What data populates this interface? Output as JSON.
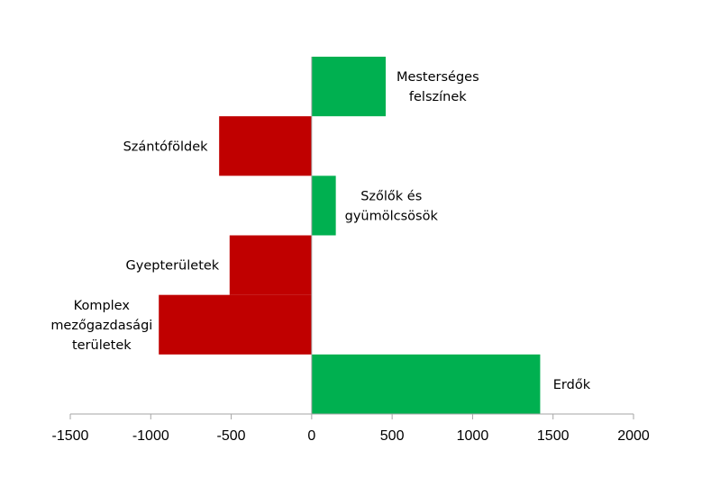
{
  "chart_data": {
    "type": "bar",
    "orientation": "horizontal",
    "categories": [
      "Mesterséges felszínek",
      "Szántóföldek",
      "Szőlők és gyümölcsösök",
      "Gyepterületek",
      "Komplex mezőgazdasági területek",
      "Erdők"
    ],
    "category_lines": [
      [
        "Mesterséges",
        "felszínek"
      ],
      [
        "Szántóföldek"
      ],
      [
        "Szőlők és",
        "gyümölcsösök"
      ],
      [
        "Gyepterületek"
      ],
      [
        "Komplex",
        "mezőgazdasági",
        "területek"
      ],
      [
        "Erdők"
      ]
    ],
    "values": [
      460,
      -575,
      150,
      -510,
      -950,
      1420
    ],
    "xlim": [
      -1500,
      2000
    ],
    "xticks": [
      -1500,
      -1000,
      -500,
      0,
      500,
      1000,
      1500,
      2000
    ],
    "title": "",
    "xlabel": "",
    "ylabel": "",
    "grid": false,
    "legend": "none",
    "colors": {
      "positive": "#00b050",
      "negative": "#c00000",
      "axis": "#a6a6a6"
    }
  }
}
